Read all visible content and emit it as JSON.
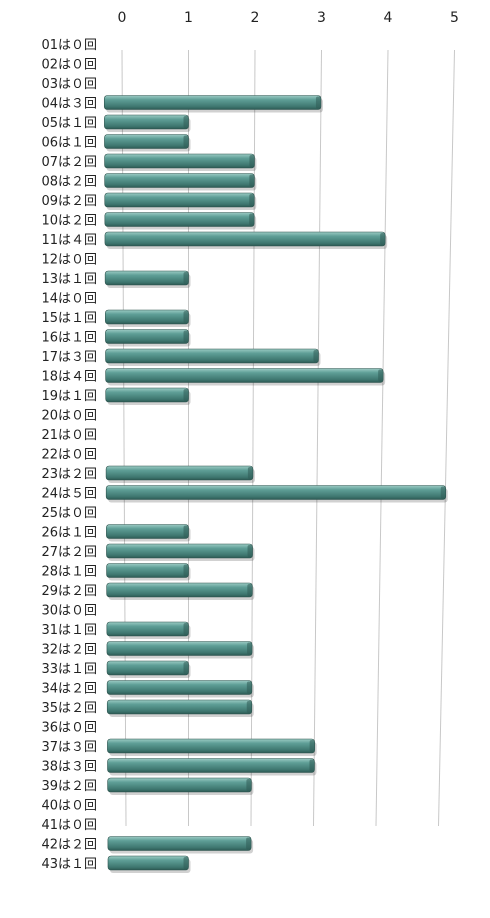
{
  "chart_data": {
    "type": "bar",
    "orientation": "horizontal",
    "title": "",
    "xlabel": "",
    "ylabel": "",
    "xlim": [
      0,
      5
    ],
    "x_ticks": [
      "0",
      "1",
      "2",
      "3",
      "4",
      "5"
    ],
    "grid": true,
    "legend": "none",
    "bar_color": "#4f8f88",
    "bar_dark_color": "#3a6a63",
    "categories": [
      "01は０回",
      "02は０回",
      "03は０回",
      "04は３回",
      "05は１回",
      "06は１回",
      "07は２回",
      "08は２回",
      "09は２回",
      "10は２回",
      "11は４回",
      "12は０回",
      "13は１回",
      "14は０回",
      "15は１回",
      "16は１回",
      "17は３回",
      "18は４回",
      "19は１回",
      "20は０回",
      "21は０回",
      "22は０回",
      "23は２回",
      "24は５回",
      "25は０回",
      "26は１回",
      "27は２回",
      "28は１回",
      "29は２回",
      "30は０回",
      "31は１回",
      "32は２回",
      "33は１回",
      "34は２回",
      "35は２回",
      "36は０回",
      "37は３回",
      "38は３回",
      "39は２回",
      "40は０回",
      "41は０回",
      "42は２回",
      "43は１回"
    ],
    "values": [
      0,
      0,
      0,
      3,
      1,
      1,
      2,
      2,
      2,
      2,
      4,
      0,
      1,
      0,
      1,
      1,
      3,
      4,
      1,
      0,
      0,
      0,
      2,
      5,
      0,
      1,
      2,
      1,
      2,
      0,
      1,
      2,
      1,
      2,
      2,
      0,
      3,
      3,
      2,
      0,
      0,
      2,
      1
    ]
  }
}
